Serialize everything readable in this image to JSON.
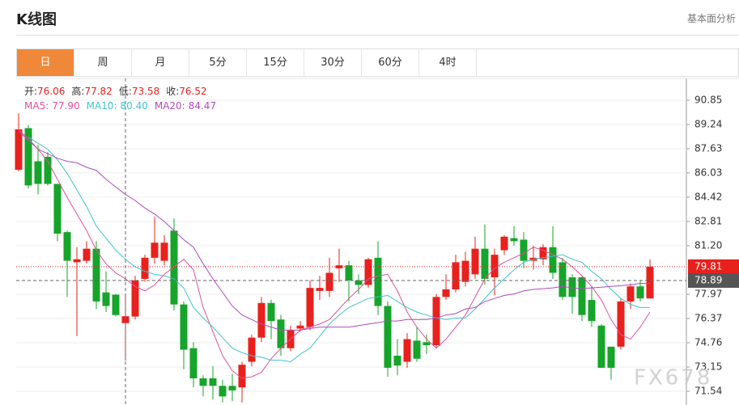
{
  "header": {
    "title": "K线图",
    "link": "基本面分析"
  },
  "tabs": {
    "items": [
      "日",
      "周",
      "月",
      "5分",
      "15分",
      "30分",
      "60分",
      "4时"
    ],
    "active": 0
  },
  "watermark": "FX678",
  "chart_data": {
    "type": "candlestick",
    "readout": [
      {
        "name": "开:",
        "value": 76.06
      },
      {
        "name": "高:",
        "value": 77.82
      },
      {
        "name": "低:",
        "value": 73.58
      },
      {
        "name": "收:",
        "value": 76.52
      }
    ],
    "up_color": "#e8211d",
    "down_color": "#17a42a",
    "open": [
      86.24,
      89.0,
      86.8,
      87.1,
      85.3,
      82.1,
      80.1,
      80.2,
      81.0,
      78.1,
      77.95,
      76.06,
      76.5,
      79.0,
      80.4,
      80.2,
      82.2,
      77.3,
      74.4,
      72.4,
      72.4,
      71.9,
      71.9,
      71.8,
      73.5,
      75.1,
      77.4,
      76.3,
      74.4,
      75.7,
      75.8,
      78.2,
      78.2,
      79.7,
      79.9,
      78.9,
      78.6,
      80.4,
      77.2,
      73.9,
      73.5,
      74.9,
      74.8,
      74.6,
      77.8,
      78.3,
      78.8,
      79.3,
      81.0,
      79.1,
      80.9,
      81.7,
      81.6,
      80.2,
      80.3,
      81.1,
      80.1,
      79.1,
      79.1,
      77.6,
      75.9,
      74.5,
      74.5,
      77.5,
      78.5,
      77.7
    ],
    "high": [
      89.99,
      89.2,
      87.9,
      87.4,
      85.3,
      82.2,
      81.1,
      81.5,
      81.5,
      79.5,
      78.0,
      77.82,
      79.2,
      80.6,
      83.1,
      81.9,
      83.0,
      77.5,
      74.8,
      72.6,
      73.2,
      72.3,
      72.7,
      73.5,
      75.3,
      77.8,
      77.6,
      76.6,
      75.9,
      76.2,
      78.9,
      79.2,
      80.4,
      81.0,
      80.2,
      79.3,
      80.4,
      81.5,
      77.5,
      75.0,
      75.4,
      75.8,
      75.3,
      78.0,
      79.3,
      80.6,
      80.8,
      81.8,
      82.6,
      81.0,
      81.9,
      82.5,
      82.1,
      81.2,
      81.3,
      82.5,
      80.4,
      79.3,
      79.2,
      78.5,
      76.0,
      74.5,
      77.7,
      78.7,
      78.9,
      80.3
    ],
    "low": [
      86.13,
      85.0,
      84.6,
      85.2,
      81.5,
      77.8,
      75.2,
      80.0,
      77.0,
      76.8,
      76.5,
      73.58,
      76.3,
      78.8,
      80.0,
      79.9,
      76.9,
      73.0,
      71.8,
      71.2,
      71.0,
      70.8,
      70.9,
      70.8,
      73.2,
      74.8,
      75.0,
      73.9,
      74.2,
      75.5,
      75.6,
      77.6,
      77.8,
      78.8,
      77.5,
      78.0,
      78.4,
      76.6,
      72.5,
      72.6,
      73.1,
      73.5,
      74.0,
      74.4,
      77.6,
      78.1,
      78.5,
      79.0,
      78.6,
      77.9,
      80.6,
      81.2,
      79.7,
      79.6,
      79.9,
      79.0,
      77.6,
      76.7,
      76.2,
      75.8,
      73.1,
      72.3,
      74.3,
      77.0,
      77.5,
      77.7
    ],
    "close": [
      88.92,
      85.2,
      85.3,
      85.3,
      82.0,
      80.2,
      80.3,
      81.0,
      77.5,
      77.2,
      76.6,
      76.52,
      78.9,
      80.4,
      81.4,
      81.4,
      77.3,
      74.3,
      72.4,
      71.9,
      71.9,
      71.2,
      71.6,
      73.3,
      75.1,
      77.4,
      76.2,
      74.4,
      75.6,
      75.9,
      78.4,
      78.4,
      79.4,
      79.9,
      78.9,
      78.6,
      80.3,
      77.2,
      73.1,
      73.25,
      75.0,
      73.7,
      74.6,
      77.8,
      78.3,
      80.1,
      80.2,
      81.0,
      79.0,
      80.6,
      81.8,
      81.5,
      80.2,
      80.4,
      81.1,
      79.4,
      77.8,
      77.8,
      76.6,
      76.2,
      73.1,
      73.1,
      77.5,
      78.5,
      77.7,
      79.81
    ],
    "series": [
      {
        "name": "MA5:",
        "color": "#e0509b",
        "current": {
          "value": 77.9,
          "label": "77.90"
        },
        "values": [
          88.9,
          88.3,
          87.6,
          86.8,
          85.6,
          84.4,
          83.3,
          82.2,
          80.9,
          80.0,
          79.4,
          79.0,
          78.5,
          78.2,
          78.6,
          79.3,
          79.8,
          80.3,
          79.6,
          77.1,
          75.5,
          73.9,
          72.9,
          72.4,
          72.5,
          72.8,
          73.7,
          74.4,
          75.0,
          75.6,
          75.8,
          76.0,
          76.3,
          77.0,
          77.7,
          78.3,
          79.0,
          79.2,
          79.3,
          78.2,
          76.8,
          75.8,
          75.0,
          74.4,
          75.0,
          75.8,
          76.6,
          77.8,
          79.0,
          79.7,
          80.1,
          80.4,
          80.7,
          81.1,
          80.9,
          80.6,
          80.3,
          79.8,
          79.2,
          78.5,
          77.6,
          76.3,
          75.3,
          75.0,
          75.8,
          76.8
        ]
      },
      {
        "name": "MA10:",
        "color": "#3ec3d0",
        "current": {
          "value": 80.4,
          "label": "80.40"
        },
        "values": [
          null,
          88.4,
          88.0,
          87.6,
          86.9,
          86.0,
          84.9,
          83.8,
          82.5,
          81.7,
          80.9,
          80.3,
          79.8,
          79.5,
          79.3,
          79.2,
          79.0,
          78.4,
          77.1,
          76.4,
          75.8,
          75.1,
          74.4,
          74.1,
          73.9,
          73.8,
          73.6,
          73.6,
          73.5,
          74.0,
          74.4,
          75.2,
          76.0,
          76.6,
          77.1,
          77.4,
          77.7,
          77.8,
          77.9,
          77.5,
          77.1,
          76.8,
          76.6,
          76.4,
          76.3,
          76.4,
          76.4,
          77.0,
          77.7,
          78.4,
          79.0,
          79.6,
          80.1,
          80.3,
          80.4,
          80.5,
          80.6,
          80.3,
          80.1,
          79.5,
          79.0,
          78.3,
          77.7,
          77.3,
          77.1,
          77.1
        ]
      },
      {
        "name": "MA20:",
        "color": "#b04bbd",
        "current": 84.47,
        "values": [
          88.8,
          88.2,
          87.6,
          87.3,
          87.0,
          86.8,
          86.7,
          86.4,
          86.2,
          85.6,
          85.1,
          84.6,
          84.2,
          83.7,
          83.3,
          82.8,
          82.2,
          81.6,
          81.1,
          80.0,
          79.0,
          78.1,
          77.2,
          76.6,
          76.3,
          76.0,
          75.8,
          75.6,
          75.6,
          75.6,
          75.7,
          75.8,
          75.8,
          75.8,
          75.8,
          75.9,
          76.0,
          76.1,
          76.2,
          76.2,
          76.3,
          76.3,
          76.3,
          76.4,
          76.6,
          76.7,
          77.0,
          77.1,
          77.5,
          77.7,
          77.9,
          78.0,
          78.2,
          78.3,
          78.35,
          78.4,
          78.5,
          78.4,
          78.35,
          78.4,
          78.45,
          78.5,
          78.55,
          78.6,
          78.7,
          78.7
        ]
      }
    ],
    "ylim": [
      70.63,
      92.3
    ],
    "yticks": [
      90.85,
      89.24,
      87.63,
      86.03,
      84.42,
      82.81,
      {
        "value": 81.2,
        "label": "81.20"
      },
      77.97,
      76.37,
      74.76,
      73.15,
      71.54
    ],
    "grid": true,
    "last_price": 79.81,
    "crosshair": {
      "index": 11,
      "price": 78.89
    }
  }
}
